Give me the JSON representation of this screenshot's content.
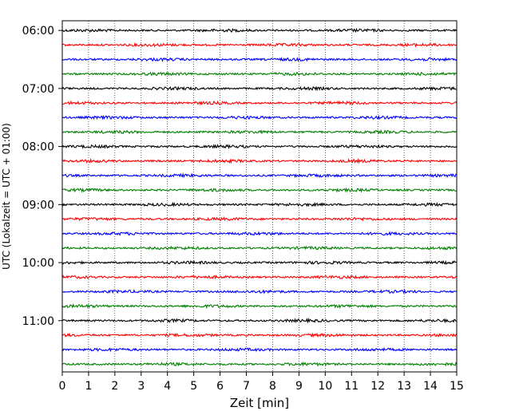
{
  "chart_data": {
    "type": "line",
    "title": "",
    "xlabel": "Zeit  [min]",
    "ylabel": "UTC (Lokalzeit = UTC + 01:00)",
    "xlim": [
      0,
      15
    ],
    "xticks": [
      0,
      1,
      2,
      3,
      4,
      5,
      6,
      7,
      8,
      9,
      10,
      11,
      12,
      13,
      14,
      15
    ],
    "ylim": [
      "05:50",
      "11:53"
    ],
    "yticks": [
      "06:00",
      "07:00",
      "08:00",
      "09:00",
      "10:00",
      "11:00"
    ],
    "grid": "vertical-dotted",
    "trace_interval_minutes": 15,
    "trace_colors": [
      "#000000",
      "#ff0000",
      "#0000ff",
      "#008000"
    ],
    "traces": [
      {
        "start": "06:00",
        "color": "#000000"
      },
      {
        "start": "06:15",
        "color": "#ff0000"
      },
      {
        "start": "06:30",
        "color": "#0000ff"
      },
      {
        "start": "06:45",
        "color": "#008000"
      },
      {
        "start": "07:00",
        "color": "#000000"
      },
      {
        "start": "07:15",
        "color": "#ff0000"
      },
      {
        "start": "07:30",
        "color": "#0000ff"
      },
      {
        "start": "07:45",
        "color": "#008000"
      },
      {
        "start": "08:00",
        "color": "#000000"
      },
      {
        "start": "08:15",
        "color": "#ff0000"
      },
      {
        "start": "08:30",
        "color": "#0000ff"
      },
      {
        "start": "08:45",
        "color": "#008000"
      },
      {
        "start": "09:00",
        "color": "#000000"
      },
      {
        "start": "09:15",
        "color": "#ff0000"
      },
      {
        "start": "09:30",
        "color": "#0000ff"
      },
      {
        "start": "09:45",
        "color": "#008000"
      },
      {
        "start": "10:00",
        "color": "#000000"
      },
      {
        "start": "10:15",
        "color": "#ff0000"
      },
      {
        "start": "10:30",
        "color": "#0000ff"
      },
      {
        "start": "10:45",
        "color": "#008000"
      },
      {
        "start": "11:00",
        "color": "#000000"
      },
      {
        "start": "11:15",
        "color": "#ff0000"
      },
      {
        "start": "11:30",
        "color": "#0000ff"
      },
      {
        "start": "11:45",
        "color": "#008000"
      }
    ]
  }
}
